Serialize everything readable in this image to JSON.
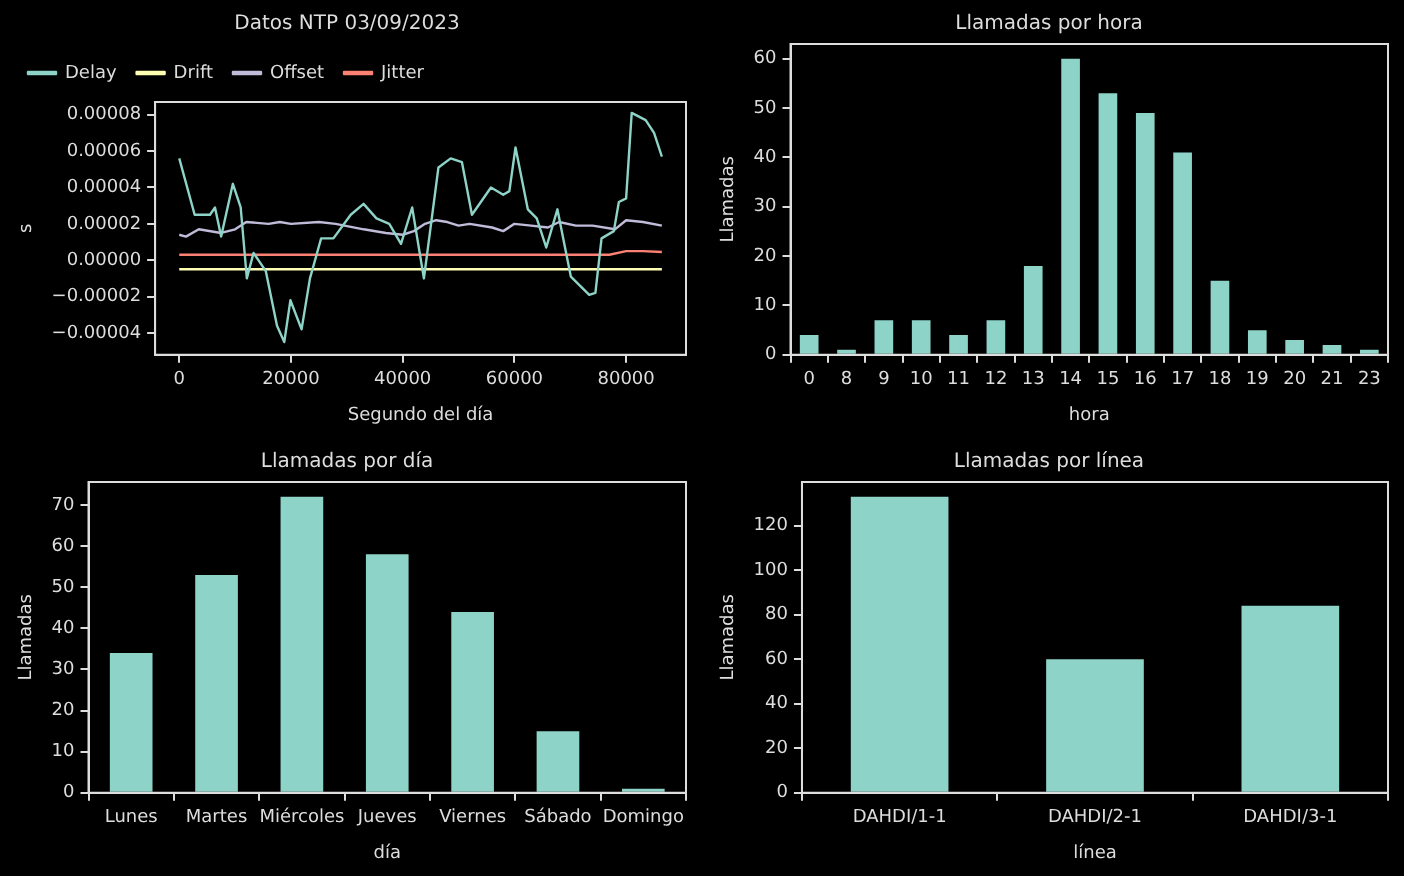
{
  "chart_data": [
    {
      "type": "line",
      "title": "Datos NTP 03/09/2023",
      "xlabel": "Segundo del día",
      "ylabel": "s",
      "legend": "top left",
      "grid": false,
      "marker": "none",
      "line_style": "solid",
      "xlim": [
        -4320,
        90720
      ],
      "xticks": [
        0,
        20000,
        40000,
        60000,
        80000
      ],
      "ylim": [
        -5.2e-05,
        8.7e-05
      ],
      "yticks": [
        {
          "value": -4e-05,
          "label": "−0.00004"
        },
        {
          "value": -2e-05,
          "label": "−0.00002"
        },
        {
          "value": 0,
          "label": "0.00000"
        },
        {
          "value": 2e-05,
          "label": "0.00002"
        },
        {
          "value": 4e-05,
          "label": "0.00004"
        },
        {
          "value": 6e-05,
          "label": "0.00006"
        },
        {
          "value": 8e-05,
          "label": "0.00008"
        }
      ],
      "series": [
        {
          "name": "Delay",
          "color": "#8dd3c7",
          "x": [
            0,
            2760,
            5500,
            6400,
            7500,
            9600,
            11000,
            12100,
            13300,
            15500,
            17500,
            18800,
            19900,
            21900,
            23400,
            25400,
            27600,
            30700,
            33000,
            35300,
            37600,
            39700,
            41700,
            43800,
            46400,
            48600,
            50600,
            52400,
            55800,
            58000,
            59100,
            60200,
            62400,
            64000,
            65700,
            67700,
            70100,
            73400,
            74500,
            75600,
            77800,
            78700,
            80000,
            81000,
            83500,
            85000,
            86400
          ],
          "values": [
            5.6e-05,
            2.5e-05,
            2.5e-05,
            2.9e-05,
            1.3e-05,
            4.2e-05,
            2.9e-05,
            -1e-05,
            4e-06,
            -6e-06,
            -3.6e-05,
            -4.5e-05,
            -2.2e-05,
            -3.8e-05,
            -1e-05,
            1.2e-05,
            1.2e-05,
            2.5e-05,
            3.1e-05,
            2.3e-05,
            2e-05,
            9e-06,
            2.9e-05,
            -1e-05,
            5.1e-05,
            5.6e-05,
            5.4e-05,
            2.5e-05,
            4e-05,
            3.6e-05,
            3.8e-05,
            6.2e-05,
            2.8e-05,
            2.3e-05,
            7e-06,
            2.8e-05,
            -9e-06,
            -1.9e-05,
            -1.8e-05,
            1.2e-05,
            1.6e-05,
            3.2e-05,
            3.4e-05,
            8.1e-05,
            7.7e-05,
            7e-05,
            5.7e-05
          ]
        },
        {
          "name": "Drift",
          "color": "#feffb3",
          "x": [
            0,
            86400
          ],
          "values": [
            -5e-06,
            -5e-06
          ]
        },
        {
          "name": "Offset",
          "color": "#bfbbd9",
          "x": [
            0,
            1200,
            3500,
            7500,
            10000,
            12000,
            16000,
            18000,
            20000,
            25000,
            28000,
            33000,
            37000,
            40000,
            42000,
            44000,
            46000,
            48000,
            50000,
            52000,
            56000,
            58000,
            60000,
            63000,
            66000,
            68000,
            71000,
            74000,
            78000,
            80000,
            83000,
            86400
          ],
          "values": [
            1.4e-05,
            1.3e-05,
            1.7e-05,
            1.5e-05,
            1.7e-05,
            2.1e-05,
            2e-05,
            2.1e-05,
            2e-05,
            2.1e-05,
            2e-05,
            1.7e-05,
            1.5e-05,
            1.4e-05,
            1.6e-05,
            2e-05,
            2.2e-05,
            2.1e-05,
            1.9e-05,
            2e-05,
            1.8e-05,
            1.6e-05,
            2e-05,
            1.9e-05,
            1.8e-05,
            2.1e-05,
            1.9e-05,
            1.9e-05,
            1.7e-05,
            2.2e-05,
            2.1e-05,
            1.9e-05
          ]
        },
        {
          "name": "Jitter",
          "color": "#fa8174",
          "x": [
            0,
            20000,
            40000,
            60000,
            77000,
            80000,
            83000,
            86400
          ],
          "values": [
            3e-06,
            3e-06,
            3e-06,
            3e-06,
            3e-06,
            5e-06,
            5e-06,
            4.5e-06
          ]
        }
      ]
    },
    {
      "type": "bar",
      "title": "Llamadas por hora",
      "xlabel": "hora",
      "ylabel": "Llamadas",
      "grid": false,
      "categories": [
        "0",
        "8",
        "9",
        "10",
        "11",
        "12",
        "13",
        "14",
        "15",
        "16",
        "17",
        "18",
        "19",
        "20",
        "21",
        "23"
      ],
      "values": [
        4,
        1,
        7,
        7,
        4,
        7,
        18,
        60,
        53,
        49,
        41,
        15,
        5,
        3,
        2,
        1
      ],
      "color": "#8dd3c7",
      "ylim": [
        0,
        63
      ],
      "yticks": [
        0,
        10,
        20,
        30,
        40,
        50,
        60
      ]
    },
    {
      "type": "bar",
      "title": "Llamadas por día",
      "xlabel": "día",
      "ylabel": "Llamadas",
      "grid": false,
      "categories": [
        "Lunes",
        "Martes",
        "Miércoles",
        "Jueves",
        "Viernes",
        "Sábado",
        "Domingo"
      ],
      "values": [
        34,
        53,
        72,
        58,
        44,
        15,
        1
      ],
      "color": "#8dd3c7",
      "ylim": [
        0,
        75.6
      ],
      "yticks": [
        0,
        10,
        20,
        30,
        40,
        50,
        60,
        70
      ]
    },
    {
      "type": "bar",
      "title": "Llamadas por línea",
      "xlabel": "línea",
      "ylabel": "Llamadas",
      "grid": false,
      "categories": [
        "DAHDI/1-1",
        "DAHDI/2-1",
        "DAHDI/3-1"
      ],
      "values": [
        133,
        60,
        84
      ],
      "color": "#8dd3c7",
      "ylim": [
        0,
        139.6
      ],
      "yticks": [
        0,
        20,
        40,
        60,
        80,
        100,
        120
      ]
    }
  ]
}
